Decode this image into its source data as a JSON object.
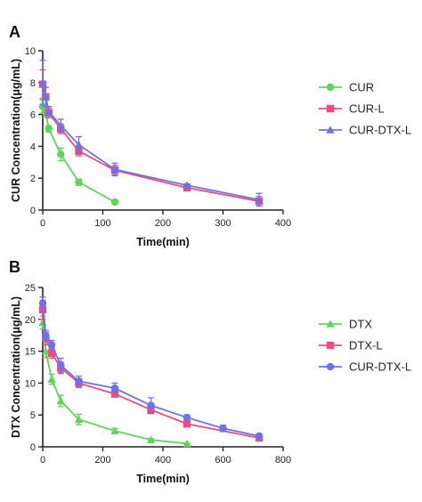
{
  "chart_data": [
    {
      "panel_label": "A",
      "type": "line",
      "xlabel": "Time(min)",
      "ylabel": "CUR Concentration(μg/mL)",
      "xlim": [
        0,
        400
      ],
      "ylim": [
        0,
        10
      ],
      "xticks": [
        0,
        100,
        200,
        300,
        400
      ],
      "yticks": [
        0,
        2,
        4,
        6,
        8,
        10
      ],
      "legend_position": "right",
      "series": [
        {
          "name": "CUR",
          "color": "#5fd35a",
          "marker": "circle",
          "x": [
            0,
            5,
            10,
            30,
            60,
            120
          ],
          "y": [
            6.5,
            6.1,
            5.1,
            3.5,
            1.75,
            0.5
          ],
          "err": [
            0.4,
            0.3,
            0.2,
            0.4,
            0.2,
            0
          ]
        },
        {
          "name": "CUR-L",
          "color": "#ef4b7f",
          "marker": "square",
          "x": [
            0,
            5,
            10,
            30,
            60,
            120,
            240,
            360
          ],
          "y": [
            7.9,
            7.1,
            6.1,
            5.1,
            3.7,
            2.5,
            1.4,
            0.55
          ],
          "err": [
            0.9,
            0.6,
            0.3,
            0.3,
            0.3,
            0.3,
            0.1,
            0.3
          ]
        },
        {
          "name": "CUR-DTX-L",
          "color": "#6b74e6",
          "marker": "triangle",
          "x": [
            0,
            5,
            10,
            30,
            60,
            120,
            240,
            360
          ],
          "y": [
            8.0,
            7.1,
            6.2,
            5.3,
            4.1,
            2.55,
            1.55,
            0.65
          ],
          "err": [
            1.4,
            0.6,
            0.3,
            0.4,
            0.5,
            0.4,
            0.1,
            0.4
          ]
        }
      ]
    },
    {
      "panel_label": "B",
      "type": "line",
      "xlabel": "Time(min)",
      "ylabel": "DTX Concentration(μg/mL)",
      "xlim": [
        0,
        800
      ],
      "ylim": [
        0,
        25
      ],
      "xticks": [
        0,
        200,
        400,
        600,
        800
      ],
      "yticks": [
        0,
        5,
        10,
        15,
        20,
        25
      ],
      "legend_position": "right",
      "series": [
        {
          "name": "DTX",
          "color": "#5fd35a",
          "marker": "triangle",
          "x": [
            0,
            10,
            30,
            60,
            120,
            240,
            360,
            480
          ],
          "y": [
            19.5,
            15.0,
            10.6,
            7.2,
            4.3,
            2.5,
            1.1,
            0.5
          ],
          "err": [
            1.0,
            1.0,
            0.8,
            0.9,
            0.8,
            0.4,
            0.2,
            0.1
          ]
        },
        {
          "name": "DTX-L",
          "color": "#ef4b7f",
          "marker": "square",
          "x": [
            0,
            10,
            30,
            60,
            120,
            240,
            360,
            480,
            720
          ],
          "y": [
            21.5,
            17.0,
            14.7,
            12.4,
            10.0,
            8.3,
            5.8,
            3.6,
            1.4
          ],
          "err": [
            1.5,
            1.0,
            0.8,
            0.9,
            0.7,
            0.5,
            0.6,
            0.4,
            0.2
          ]
        },
        {
          "name": "CUR-DTX-L",
          "color": "#6b74e6",
          "marker": "circle",
          "x": [
            0,
            10,
            30,
            60,
            120,
            240,
            360,
            480,
            600,
            720
          ],
          "y": [
            22.5,
            17.5,
            16.0,
            12.8,
            10.3,
            9.2,
            6.5,
            4.6,
            2.9,
            1.7
          ],
          "err": [
            1.0,
            0.8,
            0.7,
            1.1,
            0.8,
            0.8,
            1.2,
            0.4,
            0.5,
            0.2
          ]
        }
      ]
    }
  ]
}
